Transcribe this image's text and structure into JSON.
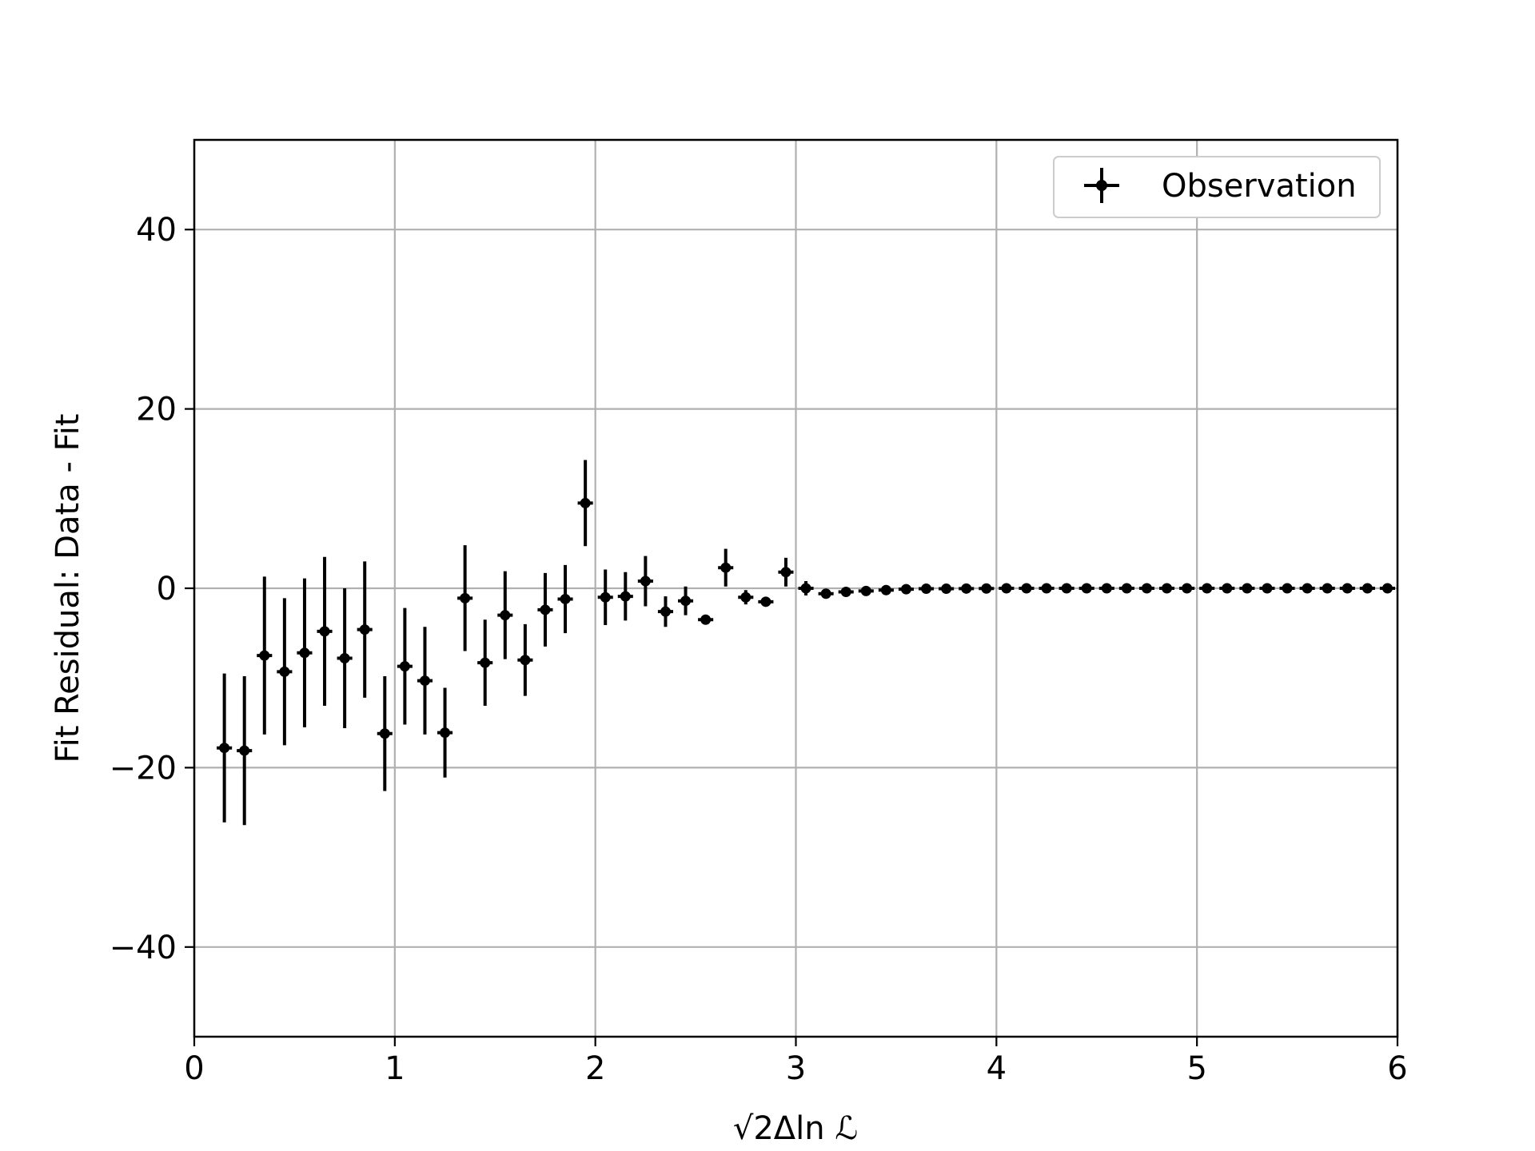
{
  "chart_data": {
    "type": "scatter",
    "title": "",
    "xlabel": "√2Δln ℒ",
    "ylabel": "Fit Residual: Data - Fit",
    "xlim": [
      0,
      6
    ],
    "ylim": [
      -50,
      50
    ],
    "xticks": [
      0,
      1,
      2,
      3,
      4,
      5,
      6
    ],
    "yticks": [
      -40,
      -20,
      0,
      20,
      40
    ],
    "xtick_labels": [
      "0",
      "1",
      "2",
      "3",
      "4",
      "5",
      "6"
    ],
    "ytick_labels": [
      "−40",
      "−20",
      "0",
      "20",
      "40"
    ],
    "grid": true,
    "legend_position": "top-right",
    "series": [
      {
        "name": "Observation",
        "color": "#000000",
        "marker": "circle",
        "x_halfwidth": 0.05,
        "points": [
          {
            "x": 0.15,
            "y": -17.8,
            "yerr": 8.3
          },
          {
            "x": 0.25,
            "y": -18.1,
            "yerr": 8.3
          },
          {
            "x": 0.35,
            "y": -7.5,
            "yerr": 8.8
          },
          {
            "x": 0.45,
            "y": -9.3,
            "yerr": 8.2
          },
          {
            "x": 0.55,
            "y": -7.2,
            "yerr": 8.3
          },
          {
            "x": 0.65,
            "y": -4.8,
            "yerr": 8.3
          },
          {
            "x": 0.75,
            "y": -7.8,
            "yerr": 7.8
          },
          {
            "x": 0.85,
            "y": -4.6,
            "yerr": 7.6
          },
          {
            "x": 0.95,
            "y": -16.2,
            "yerr": 6.4
          },
          {
            "x": 1.05,
            "y": -8.7,
            "yerr": 6.5
          },
          {
            "x": 1.15,
            "y": -10.3,
            "yerr": 6.0
          },
          {
            "x": 1.25,
            "y": -16.1,
            "yerr": 5.0
          },
          {
            "x": 1.35,
            "y": -1.1,
            "yerr": 5.9
          },
          {
            "x": 1.45,
            "y": -8.3,
            "yerr": 4.8
          },
          {
            "x": 1.55,
            "y": -3.0,
            "yerr": 4.9
          },
          {
            "x": 1.65,
            "y": -8.0,
            "yerr": 4.0
          },
          {
            "x": 1.75,
            "y": -2.4,
            "yerr": 4.1
          },
          {
            "x": 1.85,
            "y": -1.2,
            "yerr": 3.8
          },
          {
            "x": 1.95,
            "y": 9.5,
            "yerr": 4.8
          },
          {
            "x": 2.05,
            "y": -1.0,
            "yerr": 3.1
          },
          {
            "x": 2.15,
            "y": -0.9,
            "yerr": 2.7
          },
          {
            "x": 2.25,
            "y": 0.8,
            "yerr": 2.8
          },
          {
            "x": 2.35,
            "y": -2.6,
            "yerr": 1.7
          },
          {
            "x": 2.45,
            "y": -1.4,
            "yerr": 1.6
          },
          {
            "x": 2.55,
            "y": -3.5,
            "yerr": 0.4
          },
          {
            "x": 2.65,
            "y": 2.3,
            "yerr": 2.1
          },
          {
            "x": 2.75,
            "y": -1.0,
            "yerr": 0.8
          },
          {
            "x": 2.85,
            "y": -1.5,
            "yerr": 0.4
          },
          {
            "x": 2.95,
            "y": 1.8,
            "yerr": 1.6
          },
          {
            "x": 3.05,
            "y": 0.0,
            "yerr": 0.8
          },
          {
            "x": 3.15,
            "y": -0.6,
            "yerr": 0.1
          },
          {
            "x": 3.25,
            "y": -0.4,
            "yerr": 0.1
          },
          {
            "x": 3.35,
            "y": -0.3,
            "yerr": 0.05
          },
          {
            "x": 3.45,
            "y": -0.2,
            "yerr": 0.05
          },
          {
            "x": 3.55,
            "y": -0.1,
            "yerr": 0.05
          },
          {
            "x": 3.65,
            "y": -0.05,
            "yerr": 0.03
          },
          {
            "x": 3.75,
            "y": -0.05,
            "yerr": 0.03
          },
          {
            "x": 3.85,
            "y": -0.03,
            "yerr": 0.02
          },
          {
            "x": 3.95,
            "y": -0.02,
            "yerr": 0.02
          },
          {
            "x": 4.05,
            "y": 0,
            "yerr": 0.01
          },
          {
            "x": 4.15,
            "y": 0,
            "yerr": 0.01
          },
          {
            "x": 4.25,
            "y": 0,
            "yerr": 0.01
          },
          {
            "x": 4.35,
            "y": 0,
            "yerr": 0.01
          },
          {
            "x": 4.45,
            "y": 0,
            "yerr": 0.01
          },
          {
            "x": 4.55,
            "y": 0,
            "yerr": 0.01
          },
          {
            "x": 4.65,
            "y": 0,
            "yerr": 0.01
          },
          {
            "x": 4.75,
            "y": 0,
            "yerr": 0.01
          },
          {
            "x": 4.85,
            "y": 0,
            "yerr": 0.01
          },
          {
            "x": 4.95,
            "y": 0,
            "yerr": 0.01
          },
          {
            "x": 5.05,
            "y": 0,
            "yerr": 0.01
          },
          {
            "x": 5.15,
            "y": 0,
            "yerr": 0.01
          },
          {
            "x": 5.25,
            "y": 0,
            "yerr": 0.01
          },
          {
            "x": 5.35,
            "y": 0,
            "yerr": 0.01
          },
          {
            "x": 5.45,
            "y": 0,
            "yerr": 0.01
          },
          {
            "x": 5.55,
            "y": 0,
            "yerr": 0.01
          },
          {
            "x": 5.65,
            "y": 0,
            "yerr": 0.01
          },
          {
            "x": 5.75,
            "y": 0,
            "yerr": 0.01
          },
          {
            "x": 5.85,
            "y": 0,
            "yerr": 0.01
          },
          {
            "x": 5.95,
            "y": 0,
            "yerr": 0.01
          }
        ]
      }
    ]
  }
}
